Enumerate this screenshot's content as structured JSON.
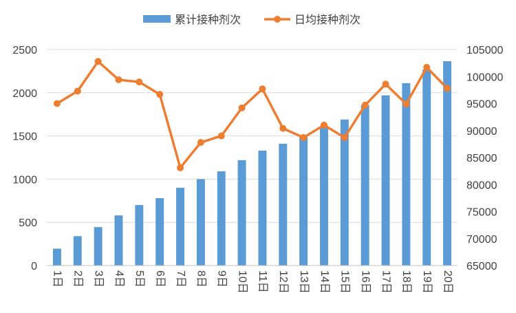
{
  "chart_data": {
    "type": "bar+line",
    "categories": [
      "1日",
      "2日",
      "3日",
      "4日",
      "5日",
      "6日",
      "7日",
      "8日",
      "9日",
      "10日",
      "11日",
      "12日",
      "13日",
      "14日",
      "15日",
      "16日",
      "17日",
      "18日",
      "19日",
      "20日"
    ],
    "series": [
      {
        "name": "累计接种剂次",
        "type": "bar",
        "axis": "left",
        "color": "#5B9BD5",
        "values": [
          195,
          340,
          445,
          580,
          700,
          780,
          900,
          1000,
          1090,
          1220,
          1330,
          1410,
          1495,
          1600,
          1690,
          1855,
          1970,
          2110,
          2270,
          2365
        ]
      },
      {
        "name": "日均接种剂次",
        "type": "line",
        "axis": "right",
        "color": "#ED7D31",
        "values": [
          95000,
          97300,
          102800,
          99400,
          99000,
          96700,
          83100,
          87800,
          89000,
          94200,
          97700,
          90400,
          88700,
          91000,
          88700,
          94700,
          98600,
          94900,
          101700,
          97800
        ]
      }
    ],
    "y_left": {
      "min": 0,
      "max": 2500,
      "ticks": [
        0,
        500,
        1000,
        1500,
        2000,
        2500
      ]
    },
    "y_right": {
      "min": 65000,
      "max": 105000,
      "ticks": [
        65000,
        70000,
        75000,
        80000,
        85000,
        90000,
        95000,
        100000,
        105000
      ]
    },
    "grid": true,
    "legend_position": "top",
    "grid_color": "#D9D9D9",
    "text_color": "#404040"
  }
}
